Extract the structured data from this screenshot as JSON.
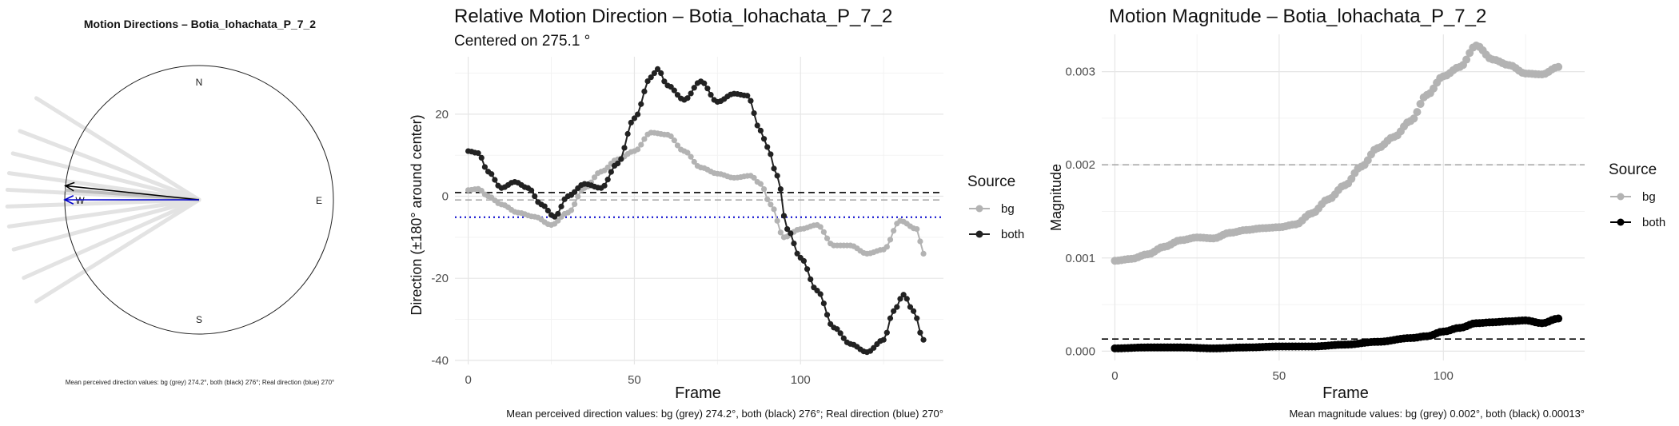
{
  "charts": [
    {
      "type": "polar",
      "title": "Motion Directions – Botia_lohachata_P_7_2",
      "compass": [
        "N",
        "E",
        "S",
        "W"
      ],
      "footnote": "Mean perceived direction values: bg (grey) 274.2°, both (black) 276°; Real direction (blue) 270°",
      "bg_rays_deg": [
        302,
        291,
        284,
        278,
        273,
        268,
        262,
        255,
        246,
        238
      ],
      "arrows": [
        {
          "label": "bg",
          "direction_deg": 274.2,
          "color": "#bdbdbd"
        },
        {
          "label": "both",
          "direction_deg": 276,
          "color": "#000000"
        },
        {
          "label": "real",
          "direction_deg": 270,
          "color": "#0000cc"
        }
      ]
    }
  ],
  "chart_data": [
    {
      "type": "line",
      "title": "Relative Motion Direction – Botia_lohachata_P_7_2",
      "subtitle": "Centered on  275.1 °",
      "xlabel": "Frame",
      "ylabel": "Direction (±180° around center)",
      "xlim": [
        -4,
        143
      ],
      "ylim": [
        -41,
        34
      ],
      "xticks": [
        0,
        50,
        100
      ],
      "yticks": [
        -40,
        -20,
        0,
        20
      ],
      "grid": true,
      "legend": {
        "title": "Source",
        "position": "right",
        "entries": [
          {
            "name": "bg",
            "color": "#b3b3b3"
          },
          {
            "name": "both",
            "color": "#222222"
          }
        ]
      },
      "hlines": [
        {
          "y": 0.9,
          "style": "dashed",
          "color": "#000000"
        },
        {
          "y": -0.9,
          "style": "dashed",
          "color": "#aaaaaa"
        },
        {
          "y": -5.1,
          "style": "dotted",
          "color": "#0000cc"
        }
      ],
      "footnote": "Mean perceived direction values: bg (grey) 274.2°, both (black) 276°; Real direction (blue) 270°",
      "series": [
        {
          "name": "bg",
          "color": "#b3b3b3",
          "x": [
            0,
            3,
            6,
            10,
            15,
            20,
            25,
            30,
            35,
            40,
            45,
            50,
            55,
            60,
            65,
            70,
            75,
            80,
            85,
            88,
            91,
            95,
            100,
            105,
            110,
            115,
            120,
            125,
            130,
            135,
            137
          ],
          "values": [
            1.5,
            1.8,
            0,
            -2,
            -4,
            -5,
            -7,
            -4,
            2,
            6,
            9,
            11,
            15.5,
            15,
            11,
            7,
            5.5,
            4.5,
            5,
            3,
            -2,
            -10,
            -8,
            -7,
            -12,
            -12,
            -14,
            -13,
            -6,
            -8,
            -14
          ]
        },
        {
          "name": "both",
          "color": "#222222",
          "x": [
            0,
            3,
            6,
            10,
            14,
            18,
            22,
            26,
            30,
            35,
            40,
            45,
            50,
            55,
            57,
            60,
            65,
            70,
            75,
            80,
            84,
            88,
            90,
            93,
            96,
            100,
            105,
            110,
            115,
            120,
            125,
            128,
            131,
            134,
            137
          ],
          "values": [
            11,
            10.5,
            6,
            2,
            3.5,
            2,
            -2,
            -5,
            0,
            3,
            2,
            8,
            19,
            29,
            31,
            27,
            23.5,
            28,
            23,
            25,
            24.5,
            16,
            12,
            5,
            -8,
            -15,
            -23,
            -32,
            -36,
            -38,
            -35,
            -28,
            -24,
            -28,
            -35
          ]
        }
      ]
    },
    {
      "type": "line",
      "title": "Motion Magnitude – Botia_lohachata_P_7_2",
      "xlabel": "Frame",
      "ylabel": "Magnitude",
      "xlim": [
        -4,
        143
      ],
      "ylim": [
        -0.0001,
        0.0034
      ],
      "xticks": [
        0,
        50,
        100
      ],
      "yticks": [
        0.0,
        0.001,
        0.002,
        0.003
      ],
      "ytick_labels": [
        "0.000",
        "0.001",
        "0.002",
        "0.003"
      ],
      "grid": true,
      "legend": {
        "title": "Source",
        "position": "right",
        "entries": [
          {
            "name": "bg",
            "color": "#b3b3b3"
          },
          {
            "name": "both",
            "color": "#000000"
          }
        ]
      },
      "hlines": [
        {
          "y": 0.002,
          "style": "dashed",
          "color": "#aaaaaa"
        },
        {
          "y": 0.00013,
          "style": "dashed",
          "color": "#000000"
        }
      ],
      "footnote": "Mean magnitude values: bg (grey) 0.002°, both (black) 0.00013°",
      "series": [
        {
          "name": "bg",
          "color": "#b3b3b3",
          "x": [
            0,
            5,
            10,
            15,
            20,
            25,
            30,
            35,
            40,
            45,
            50,
            55,
            60,
            65,
            70,
            75,
            80,
            85,
            90,
            95,
            100,
            105,
            110,
            115,
            120,
            125,
            130,
            135
          ],
          "values": [
            0.00097,
            0.00099,
            0.00104,
            0.00112,
            0.00119,
            0.00122,
            0.00121,
            0.00127,
            0.0013,
            0.00132,
            0.00133,
            0.00136,
            0.00148,
            0.00163,
            0.00178,
            0.00198,
            0.00218,
            0.0023,
            0.00247,
            0.00275,
            0.00295,
            0.00305,
            0.00328,
            0.00313,
            0.00307,
            0.00298,
            0.00297,
            0.00305
          ]
        },
        {
          "name": "both",
          "color": "#000000",
          "x": [
            0,
            10,
            20,
            30,
            40,
            50,
            60,
            70,
            80,
            90,
            95,
            100,
            105,
            110,
            115,
            120,
            125,
            130,
            135
          ],
          "values": [
            3e-05,
            4e-05,
            4e-05,
            3e-05,
            4e-05,
            5e-05,
            5e-05,
            7e-05,
            0.0001,
            0.00014,
            0.00016,
            0.00021,
            0.00025,
            0.0003,
            0.00031,
            0.00032,
            0.00033,
            0.0003,
            0.00035
          ]
        }
      ]
    }
  ]
}
